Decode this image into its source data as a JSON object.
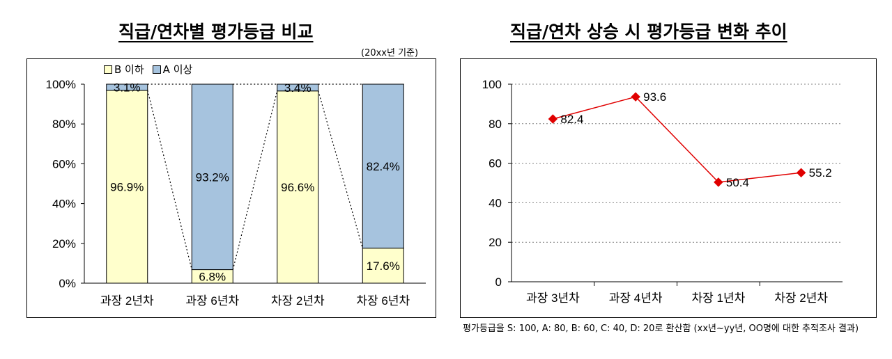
{
  "left_title": "직급/연차별 평가등급 비교",
  "basis": "(20xx년 기준)",
  "right_title": "직급/연차 상승 시 평가등급 변화 추이",
  "note": "평가등급을 S: 100, A: 80, B: 60, C: 40, D: 20로 환산함 (xx년~yy년, OO명에 대한 추적조사 결과)",
  "colors": {
    "b_below": "#FFFFCC",
    "a_above": "#A6C3DE",
    "line": "#E00000"
  },
  "chart_data": [
    {
      "type": "bar",
      "stacked": true,
      "percent": true,
      "categories": [
        "과장 2년차",
        "과장 6년차",
        "차장 2년차",
        "차장 6년차"
      ],
      "series": [
        {
          "name": "B 이하",
          "values": [
            96.9,
            6.8,
            96.6,
            17.6
          ],
          "labels": [
            "96.9%",
            "6.8%",
            "96.6%",
            "17.6%"
          ]
        },
        {
          "name": "A 이상",
          "values": [
            3.1,
            93.2,
            3.4,
            82.4
          ],
          "labels": [
            "3.1%",
            "93.2%",
            "3.4%",
            "82.4%"
          ]
        }
      ],
      "ylim": [
        0,
        100
      ],
      "yticks": [
        "0%",
        "20%",
        "40%",
        "60%",
        "80%",
        "100%"
      ],
      "legend": "top-left",
      "grid": false
    },
    {
      "type": "line",
      "categories": [
        "과장 3년차",
        "과장 4년차",
        "차장 1년차",
        "차장 2년차"
      ],
      "series": [
        {
          "values": [
            82.4,
            93.6,
            50.4,
            55.2
          ],
          "labels": [
            "82.4",
            "93.6",
            "50.4",
            "55.2"
          ]
        }
      ],
      "ylim": [
        0,
        100
      ],
      "yticks": [
        "0",
        "20",
        "40",
        "60",
        "80",
        "100"
      ],
      "grid": true,
      "marker": "diamond"
    }
  ]
}
